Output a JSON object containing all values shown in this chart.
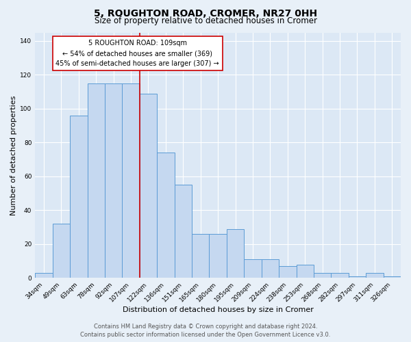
{
  "title": "5, ROUGHTON ROAD, CROMER, NR27 0HH",
  "subtitle": "Size of property relative to detached houses in Cromer",
  "xlabel": "Distribution of detached houses by size in Cromer",
  "ylabel": "Number of detached properties",
  "footer_line1": "Contains HM Land Registry data © Crown copyright and database right 2024.",
  "footer_line2": "Contains public sector information licensed under the Open Government Licence v3.0.",
  "bar_labels": [
    "34sqm",
    "49sqm",
    "63sqm",
    "78sqm",
    "92sqm",
    "107sqm",
    "122sqm",
    "136sqm",
    "151sqm",
    "165sqm",
    "180sqm",
    "195sqm",
    "209sqm",
    "224sqm",
    "238sqm",
    "253sqm",
    "268sqm",
    "282sqm",
    "297sqm",
    "311sqm",
    "326sqm"
  ],
  "bar_values": [
    3,
    32,
    96,
    115,
    115,
    115,
    109,
    74,
    55,
    26,
    26,
    29,
    11,
    11,
    7,
    8,
    3,
    3,
    1,
    3,
    1
  ],
  "bar_color": "#c5d8f0",
  "bar_edge_color": "#5b9bd5",
  "bar_width": 1.0,
  "property_label": "5 ROUGHTON ROAD: 109sqm",
  "annotation_line1": "← 54% of detached houses are smaller (369)",
  "annotation_line2": "45% of semi-detached houses are larger (307) →",
  "vline_color": "#cc0000",
  "vline_x_index": 5.5,
  "ylim": [
    0,
    145
  ],
  "yticks": [
    0,
    20,
    40,
    60,
    80,
    100,
    120,
    140
  ],
  "bg_color": "#e8f0f8",
  "plot_bg_color": "#dce8f5",
  "grid_color": "#ffffff",
  "title_fontsize": 10,
  "subtitle_fontsize": 8.5,
  "xlabel_fontsize": 8,
  "ylabel_fontsize": 8,
  "tick_fontsize": 6.5,
  "footer_fontsize": 6,
  "annotation_fontsize": 7
}
